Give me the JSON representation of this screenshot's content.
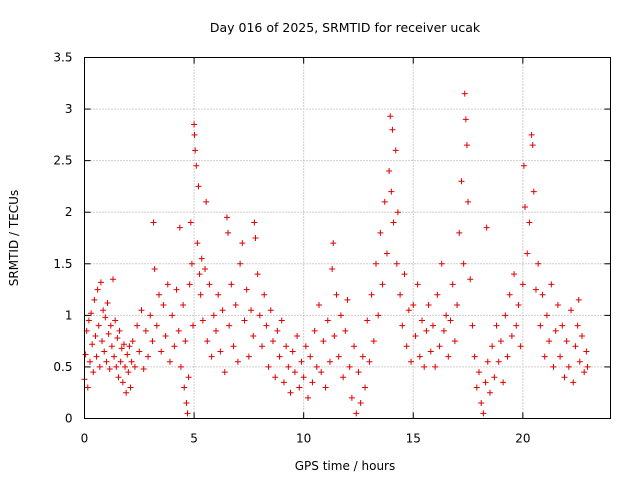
{
  "chart_data": {
    "type": "scatter",
    "title": "Day 016 of 2025, SRMTID for receiver ucak",
    "xlabel": "GPS time / hours",
    "ylabel": "SRMTID / TECUs",
    "xlim": [
      0,
      24
    ],
    "ylim": [
      0,
      3.5
    ],
    "xticks": [
      0,
      5,
      10,
      15,
      20
    ],
    "xtick_labels": [
      "0",
      "5",
      "10",
      "15",
      "20"
    ],
    "yticks": [
      0,
      0.5,
      1,
      1.5,
      2,
      2.5,
      3,
      3.5
    ],
    "ytick_labels": [
      "0",
      "0.5",
      "1",
      "1.5",
      "2",
      "2.5",
      "3",
      "3.5"
    ],
    "grid": true,
    "marker": "+",
    "color": "#e00000",
    "series": [
      {
        "name": "SRMTID",
        "points": [
          [
            0.0,
            0.38
          ],
          [
            0.05,
            0.62
          ],
          [
            0.1,
            0.85
          ],
          [
            0.15,
            0.3
          ],
          [
            0.2,
            0.95
          ],
          [
            0.25,
            0.55
          ],
          [
            0.3,
            1.02
          ],
          [
            0.35,
            0.72
          ],
          [
            0.4,
            0.45
          ],
          [
            0.45,
            1.15
          ],
          [
            0.5,
            0.8
          ],
          [
            0.55,
            0.6
          ],
          [
            0.6,
            1.25
          ],
          [
            0.65,
            0.9
          ],
          [
            0.7,
            0.5
          ],
          [
            0.75,
            1.32
          ],
          [
            0.8,
            0.75
          ],
          [
            0.85,
            1.05
          ],
          [
            0.9,
            0.65
          ],
          [
            0.95,
            0.98
          ],
          [
            1.0,
            0.55
          ],
          [
            1.05,
            1.12
          ],
          [
            1.1,
            0.82
          ],
          [
            1.15,
            0.48
          ],
          [
            1.2,
            0.9
          ],
          [
            1.25,
            0.7
          ],
          [
            1.3,
            1.35
          ],
          [
            1.35,
            0.6
          ],
          [
            1.4,
            0.95
          ],
          [
            1.45,
            0.5
          ],
          [
            1.5,
            0.78
          ],
          [
            1.55,
            0.4
          ],
          [
            1.6,
            0.85
          ],
          [
            1.65,
            0.55
          ],
          [
            1.7,
            0.68
          ],
          [
            1.75,
            0.35
          ],
          [
            1.8,
            0.72
          ],
          [
            1.85,
            0.5
          ],
          [
            1.9,
            0.25
          ],
          [
            1.95,
            0.62
          ],
          [
            2.0,
            0.45
          ],
          [
            2.05,
            0.7
          ],
          [
            2.1,
            0.3
          ],
          [
            2.15,
            0.55
          ],
          [
            2.2,
            0.75
          ],
          [
            2.3,
            0.5
          ],
          [
            2.4,
            0.9
          ],
          [
            2.5,
            0.65
          ],
          [
            2.6,
            1.05
          ],
          [
            2.7,
            0.48
          ],
          [
            2.8,
            0.85
          ],
          [
            2.9,
            0.6
          ],
          [
            3.0,
            1.0
          ],
          [
            3.1,
            0.75
          ],
          [
            3.15,
            1.9
          ],
          [
            3.2,
            1.45
          ],
          [
            3.3,
            0.9
          ],
          [
            3.4,
            1.2
          ],
          [
            3.5,
            0.65
          ],
          [
            3.6,
            1.1
          ],
          [
            3.7,
            0.8
          ],
          [
            3.8,
            1.3
          ],
          [
            3.9,
            0.55
          ],
          [
            4.0,
            1.0
          ],
          [
            4.1,
            0.7
          ],
          [
            4.2,
            1.25
          ],
          [
            4.3,
            0.85
          ],
          [
            4.35,
            1.85
          ],
          [
            4.4,
            0.5
          ],
          [
            4.5,
            1.1
          ],
          [
            4.55,
            0.3
          ],
          [
            4.6,
            0.75
          ],
          [
            4.65,
            0.15
          ],
          [
            4.7,
            0.05
          ],
          [
            4.75,
            0.4
          ],
          [
            4.8,
            1.3
          ],
          [
            4.85,
            1.9
          ],
          [
            4.9,
            1.5
          ],
          [
            4.95,
            0.9
          ],
          [
            5.0,
            2.85
          ],
          [
            5.02,
            2.75
          ],
          [
            5.05,
            2.6
          ],
          [
            5.1,
            2.45
          ],
          [
            5.15,
            1.7
          ],
          [
            5.2,
            2.25
          ],
          [
            5.25,
            1.4
          ],
          [
            5.3,
            1.2
          ],
          [
            5.35,
            1.55
          ],
          [
            5.4,
            0.95
          ],
          [
            5.5,
            1.45
          ],
          [
            5.55,
            2.1
          ],
          [
            5.6,
            0.75
          ],
          [
            5.7,
            1.3
          ],
          [
            5.8,
            0.6
          ],
          [
            5.9,
            1.0
          ],
          [
            6.0,
            0.85
          ],
          [
            6.1,
            1.2
          ],
          [
            6.2,
            0.65
          ],
          [
            6.3,
            1.05
          ],
          [
            6.4,
            0.45
          ],
          [
            6.5,
            1.95
          ],
          [
            6.55,
            1.8
          ],
          [
            6.6,
            0.9
          ],
          [
            6.7,
            1.3
          ],
          [
            6.8,
            0.7
          ],
          [
            6.9,
            1.1
          ],
          [
            7.0,
            0.55
          ],
          [
            7.1,
            1.5
          ],
          [
            7.2,
            1.7
          ],
          [
            7.3,
            0.95
          ],
          [
            7.4,
            1.25
          ],
          [
            7.5,
            0.6
          ],
          [
            7.6,
            1.05
          ],
          [
            7.7,
            0.8
          ],
          [
            7.75,
            1.9
          ],
          [
            7.8,
            1.75
          ],
          [
            7.9,
            1.4
          ],
          [
            8.0,
            1.0
          ],
          [
            8.1,
            0.7
          ],
          [
            8.2,
            1.2
          ],
          [
            8.3,
            0.9
          ],
          [
            8.4,
            0.5
          ],
          [
            8.5,
            1.05
          ],
          [
            8.6,
            0.75
          ],
          [
            8.7,
            0.4
          ],
          [
            8.8,
            0.85
          ],
          [
            8.9,
            0.6
          ],
          [
            9.0,
            0.95
          ],
          [
            9.1,
            0.35
          ],
          [
            9.2,
            0.7
          ],
          [
            9.3,
            0.5
          ],
          [
            9.4,
            0.25
          ],
          [
            9.5,
            0.65
          ],
          [
            9.6,
            0.45
          ],
          [
            9.7,
            0.8
          ],
          [
            9.8,
            0.3
          ],
          [
            9.9,
            0.55
          ],
          [
            10.0,
            0.4
          ],
          [
            10.1,
            0.7
          ],
          [
            10.2,
            0.2
          ],
          [
            10.3,
            0.6
          ],
          [
            10.4,
            0.35
          ],
          [
            10.5,
            0.85
          ],
          [
            10.6,
            0.5
          ],
          [
            10.7,
            1.1
          ],
          [
            10.8,
            0.45
          ],
          [
            10.9,
            0.75
          ],
          [
            11.0,
            0.3
          ],
          [
            11.1,
            0.95
          ],
          [
            11.2,
            0.55
          ],
          [
            11.3,
            1.45
          ],
          [
            11.35,
            1.7
          ],
          [
            11.4,
            0.8
          ],
          [
            11.5,
            1.2
          ],
          [
            11.6,
            0.6
          ],
          [
            11.7,
            1.0
          ],
          [
            11.8,
            0.4
          ],
          [
            11.9,
            0.85
          ],
          [
            12.0,
            1.15
          ],
          [
            12.1,
            0.5
          ],
          [
            12.2,
            0.2
          ],
          [
            12.3,
            0.7
          ],
          [
            12.4,
            0.05
          ],
          [
            12.5,
            0.45
          ],
          [
            12.6,
            0.15
          ],
          [
            12.7,
            0.6
          ],
          [
            12.8,
            0.3
          ],
          [
            12.9,
            0.95
          ],
          [
            13.0,
            0.55
          ],
          [
            13.1,
            1.2
          ],
          [
            13.2,
            0.75
          ],
          [
            13.3,
            1.5
          ],
          [
            13.4,
            1.0
          ],
          [
            13.5,
            1.8
          ],
          [
            13.6,
            1.3
          ],
          [
            13.7,
            2.1
          ],
          [
            13.8,
            1.6
          ],
          [
            13.9,
            2.4
          ],
          [
            13.95,
            2.93
          ],
          [
            14.0,
            2.2
          ],
          [
            14.05,
            2.8
          ],
          [
            14.1,
            1.9
          ],
          [
            14.2,
            2.6
          ],
          [
            14.25,
            1.5
          ],
          [
            14.3,
            2.0
          ],
          [
            14.4,
            1.2
          ],
          [
            14.5,
            0.9
          ],
          [
            14.6,
            1.4
          ],
          [
            14.7,
            0.7
          ],
          [
            14.8,
            1.05
          ],
          [
            14.9,
            0.55
          ],
          [
            15.0,
            1.1
          ],
          [
            15.1,
            0.8
          ],
          [
            15.2,
            1.3
          ],
          [
            15.3,
            0.6
          ],
          [
            15.4,
            0.95
          ],
          [
            15.5,
            0.5
          ],
          [
            15.6,
            0.85
          ],
          [
            15.7,
            1.1
          ],
          [
            15.8,
            0.65
          ],
          [
            15.9,
            0.9
          ],
          [
            16.0,
            0.5
          ],
          [
            16.1,
            1.2
          ],
          [
            16.2,
            0.7
          ],
          [
            16.3,
            1.5
          ],
          [
            16.4,
            0.85
          ],
          [
            16.5,
            1.0
          ],
          [
            16.6,
            0.6
          ],
          [
            16.7,
            0.95
          ],
          [
            16.8,
            1.3
          ],
          [
            16.9,
            0.75
          ],
          [
            17.0,
            1.1
          ],
          [
            17.1,
            1.8
          ],
          [
            17.2,
            2.3
          ],
          [
            17.3,
            1.5
          ],
          [
            17.35,
            3.15
          ],
          [
            17.4,
            2.9
          ],
          [
            17.45,
            2.65
          ],
          [
            17.5,
            2.1
          ],
          [
            17.6,
            1.35
          ],
          [
            17.7,
            0.9
          ],
          [
            17.8,
            0.6
          ],
          [
            17.9,
            0.3
          ],
          [
            18.0,
            0.45
          ],
          [
            18.1,
            0.15
          ],
          [
            18.2,
            0.05
          ],
          [
            18.3,
            0.35
          ],
          [
            18.35,
            1.85
          ],
          [
            18.4,
            0.55
          ],
          [
            18.5,
            0.25
          ],
          [
            18.6,
            0.7
          ],
          [
            18.7,
            0.4
          ],
          [
            18.8,
            0.9
          ],
          [
            18.9,
            0.55
          ],
          [
            19.0,
            0.75
          ],
          [
            19.1,
            0.35
          ],
          [
            19.2,
            1.0
          ],
          [
            19.3,
            0.6
          ],
          [
            19.4,
            1.2
          ],
          [
            19.5,
            0.8
          ],
          [
            19.6,
            1.4
          ],
          [
            19.7,
            0.9
          ],
          [
            19.8,
            1.1
          ],
          [
            19.9,
            0.7
          ],
          [
            20.0,
            1.3
          ],
          [
            20.05,
            2.45
          ],
          [
            20.1,
            2.05
          ],
          [
            20.2,
            1.6
          ],
          [
            20.3,
            1.9
          ],
          [
            20.4,
            2.75
          ],
          [
            20.45,
            2.65
          ],
          [
            20.5,
            2.2
          ],
          [
            20.6,
            1.25
          ],
          [
            20.7,
            1.5
          ],
          [
            20.8,
            0.9
          ],
          [
            20.9,
            1.2
          ],
          [
            21.0,
            0.6
          ],
          [
            21.1,
            1.0
          ],
          [
            21.2,
            0.75
          ],
          [
            21.3,
            1.3
          ],
          [
            21.4,
            0.5
          ],
          [
            21.5,
            0.85
          ],
          [
            21.6,
            1.1
          ],
          [
            21.7,
            0.6
          ],
          [
            21.8,
            0.9
          ],
          [
            21.9,
            0.4
          ],
          [
            22.0,
            0.75
          ],
          [
            22.1,
            0.5
          ],
          [
            22.2,
            1.05
          ],
          [
            22.3,
            0.35
          ],
          [
            22.4,
            0.7
          ],
          [
            22.5,
            0.9
          ],
          [
            22.55,
            1.15
          ],
          [
            22.6,
            0.55
          ],
          [
            22.7,
            0.8
          ],
          [
            22.8,
            0.45
          ],
          [
            22.9,
            0.65
          ],
          [
            22.95,
            0.5
          ]
        ]
      }
    ]
  }
}
